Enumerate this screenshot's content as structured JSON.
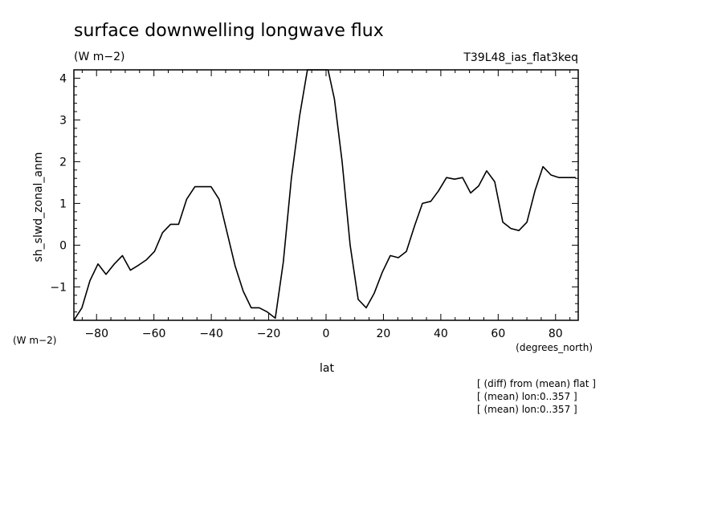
{
  "chart_data": {
    "type": "line",
    "title": "surface downwelling longwave flux",
    "units": "(W m−2)",
    "run_label": "T39L48_ias_flat3keq",
    "ylabel": "sh_slwd_zonal_anm",
    "yunits": "(W m−2)",
    "xlabel": "lat",
    "xunits": "(degrees_north)",
    "notes": [
      "[ (diff) from (mean) flat ]",
      "[ (mean) lon:0..357 ]",
      "[ (mean) lon:0..357 ]"
    ],
    "xlim": [
      -87.9,
      87.9
    ],
    "ylim": [
      -1.8,
      4.2
    ],
    "xticks": [
      -80,
      -60,
      -40,
      -20,
      0,
      20,
      40,
      60,
      80
    ],
    "xtick_labels": [
      "−80",
      "−60",
      "−40",
      "−20",
      "0",
      "20",
      "40",
      "60",
      "80"
    ],
    "yticks": [
      -1,
      0,
      1,
      2,
      3,
      4
    ],
    "ytick_labels": [
      "−1",
      "0",
      "1",
      "2",
      "3",
      "4"
    ],
    "grid": false,
    "series": [
      {
        "color": "#000000",
        "x": [
          -87.9,
          -85.1,
          -82.3,
          -79.5,
          -76.7,
          -73.8,
          -71.0,
          -68.2,
          -65.4,
          -62.6,
          -59.8,
          -57.0,
          -54.2,
          -51.4,
          -48.6,
          -45.7,
          -42.9,
          -40.1,
          -37.3,
          -34.5,
          -31.7,
          -28.9,
          -26.1,
          -23.3,
          -20.5,
          -17.7,
          -14.9,
          -12.1,
          -9.2,
          -6.5,
          -3.6,
          -0.7,
          0.0,
          0.7,
          2.9,
          5.6,
          8.4,
          11.2,
          14.0,
          16.8,
          19.6,
          22.4,
          25.2,
          28.0,
          30.8,
          33.6,
          36.5,
          39.2,
          42.0,
          44.8,
          47.6,
          50.4,
          53.2,
          56.0,
          58.8,
          61.6,
          64.4,
          67.2,
          70.0,
          72.8,
          75.6,
          78.4,
          81.2,
          84.0,
          87.0
        ],
        "y": [
          -1.8,
          -1.5,
          -0.85,
          -0.45,
          -0.7,
          -0.45,
          -0.25,
          -0.6,
          -0.48,
          -0.35,
          -0.15,
          0.3,
          0.5,
          0.5,
          1.1,
          1.4,
          1.4,
          1.4,
          1.1,
          0.3,
          -0.5,
          -1.1,
          -1.5,
          -1.5,
          -1.6,
          -1.75,
          -0.4,
          1.6,
          3.1,
          4.2,
          4.2,
          4.2,
          4.2,
          4.2,
          3.5,
          2.0,
          0.0,
          -1.3,
          -1.5,
          -1.15,
          -0.65,
          -0.25,
          -0.3,
          -0.15,
          0.45,
          1.0,
          1.05,
          1.3,
          1.62,
          1.58,
          1.62,
          1.25,
          1.42,
          1.78,
          1.52,
          0.55,
          0.4,
          0.35,
          0.55,
          1.3,
          1.88,
          1.68,
          1.62,
          1.62,
          1.62
        ]
      }
    ]
  }
}
